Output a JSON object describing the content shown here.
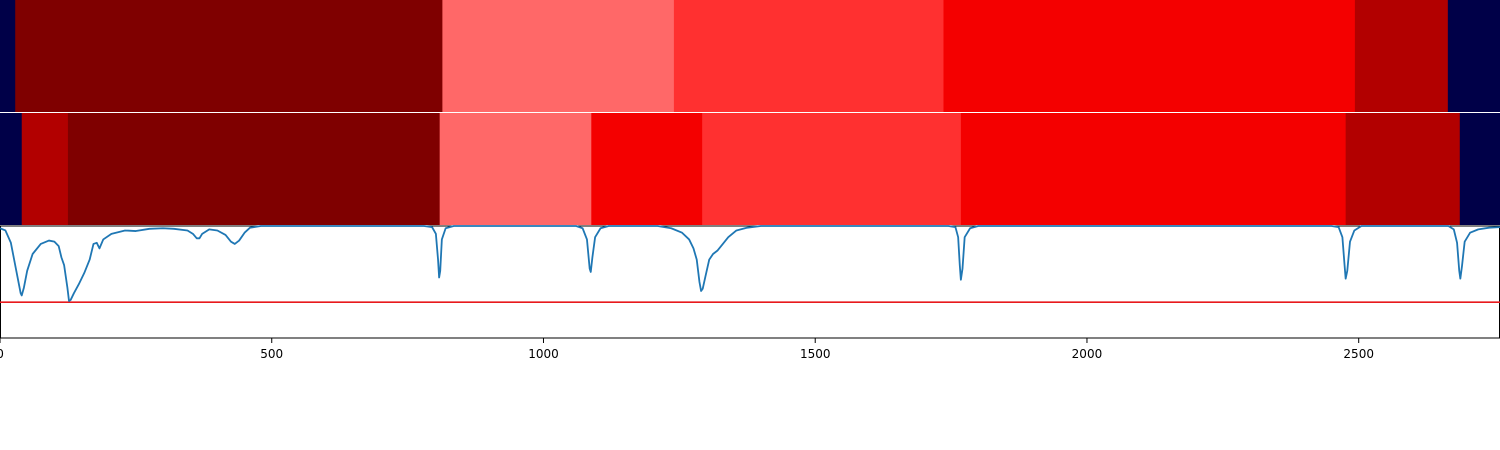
{
  "chart_data": {
    "type": "heatmap",
    "xlim": [
      0,
      2760
    ],
    "x_ticks": [
      0,
      500,
      1000,
      1500,
      2000,
      2500
    ],
    "x_tick_labels": [
      "0",
      "500",
      "1000",
      "1500",
      "2000",
      "2500"
    ],
    "colors": {
      "navy": "#000048",
      "dark_red": "#7f0000",
      "salmon": "#ff6868",
      "light_red": "#ff3030",
      "red": "#f40000",
      "mid_red": "#b20000",
      "trace": "#1f77b4",
      "threshold": "#e8191c"
    },
    "rows": [
      {
        "segments": [
          {
            "start": 0,
            "end": 28,
            "color": "navy"
          },
          {
            "start": 28,
            "end": 814,
            "color": "dark_red"
          },
          {
            "start": 814,
            "end": 1240,
            "color": "salmon"
          },
          {
            "start": 1240,
            "end": 1736,
            "color": "light_red"
          },
          {
            "start": 1736,
            "end": 2493,
            "color": "red"
          },
          {
            "start": 2493,
            "end": 2664,
            "color": "mid_red"
          },
          {
            "start": 2664,
            "end": 2760,
            "color": "navy"
          }
        ]
      },
      {
        "segments": [
          {
            "start": 0,
            "end": 40,
            "color": "navy"
          },
          {
            "start": 40,
            "end": 125,
            "color": "mid_red"
          },
          {
            "start": 125,
            "end": 809,
            "color": "dark_red"
          },
          {
            "start": 809,
            "end": 1088,
            "color": "salmon"
          },
          {
            "start": 1088,
            "end": 1292,
            "color": "red"
          },
          {
            "start": 1292,
            "end": 1768,
            "color": "light_red"
          },
          {
            "start": 1768,
            "end": 2476,
            "color": "red"
          },
          {
            "start": 2476,
            "end": 2686,
            "color": "mid_red"
          },
          {
            "start": 2686,
            "end": 2760,
            "color": "navy"
          }
        ]
      }
    ],
    "line": {
      "ylim": [
        0,
        1
      ],
      "threshold": 0.32,
      "points": [
        [
          0,
          0.98
        ],
        [
          10,
          0.96
        ],
        [
          20,
          0.85
        ],
        [
          30,
          0.6
        ],
        [
          38,
          0.4
        ],
        [
          40,
          0.38
        ],
        [
          44,
          0.45
        ],
        [
          50,
          0.6
        ],
        [
          60,
          0.75
        ],
        [
          75,
          0.84
        ],
        [
          90,
          0.87
        ],
        [
          100,
          0.86
        ],
        [
          108,
          0.82
        ],
        [
          113,
          0.72
        ],
        [
          118,
          0.65
        ],
        [
          124,
          0.45
        ],
        [
          127,
          0.33
        ],
        [
          130,
          0.34
        ],
        [
          136,
          0.4
        ],
        [
          145,
          0.48
        ],
        [
          155,
          0.58
        ],
        [
          165,
          0.7
        ],
        [
          172,
          0.84
        ],
        [
          178,
          0.85
        ],
        [
          183,
          0.8
        ],
        [
          190,
          0.88
        ],
        [
          205,
          0.93
        ],
        [
          230,
          0.96
        ],
        [
          250,
          0.955
        ],
        [
          275,
          0.975
        ],
        [
          300,
          0.98
        ],
        [
          320,
          0.975
        ],
        [
          345,
          0.96
        ],
        [
          355,
          0.93
        ],
        [
          362,
          0.89
        ],
        [
          367,
          0.89
        ],
        [
          372,
          0.93
        ],
        [
          385,
          0.97
        ],
        [
          400,
          0.96
        ],
        [
          415,
          0.92
        ],
        [
          425,
          0.86
        ],
        [
          432,
          0.84
        ],
        [
          440,
          0.87
        ],
        [
          450,
          0.94
        ],
        [
          460,
          0.985
        ],
        [
          480,
          1.0
        ],
        [
          780,
          1.0
        ],
        [
          795,
          0.99
        ],
        [
          802,
          0.93
        ],
        [
          806,
          0.7
        ],
        [
          808,
          0.54
        ],
        [
          810,
          0.6
        ],
        [
          813,
          0.88
        ],
        [
          820,
          0.98
        ],
        [
          835,
          1.0
        ],
        [
          1060,
          1.0
        ],
        [
          1072,
          0.98
        ],
        [
          1080,
          0.88
        ],
        [
          1085,
          0.62
        ],
        [
          1087,
          0.59
        ],
        [
          1090,
          0.72
        ],
        [
          1095,
          0.9
        ],
        [
          1105,
          0.98
        ],
        [
          1120,
          1.0
        ],
        [
          1210,
          1.0
        ],
        [
          1235,
          0.98
        ],
        [
          1255,
          0.94
        ],
        [
          1268,
          0.88
        ],
        [
          1276,
          0.8
        ],
        [
          1282,
          0.7
        ],
        [
          1287,
          0.5
        ],
        [
          1290,
          0.42
        ],
        [
          1293,
          0.44
        ],
        [
          1298,
          0.55
        ],
        [
          1305,
          0.7
        ],
        [
          1312,
          0.75
        ],
        [
          1320,
          0.78
        ],
        [
          1330,
          0.84
        ],
        [
          1340,
          0.9
        ],
        [
          1355,
          0.96
        ],
        [
          1375,
          0.985
        ],
        [
          1400,
          1.0
        ],
        [
          1745,
          1.0
        ],
        [
          1758,
          0.99
        ],
        [
          1763,
          0.9
        ],
        [
          1766,
          0.65
        ],
        [
          1768,
          0.52
        ],
        [
          1771,
          0.62
        ],
        [
          1775,
          0.9
        ],
        [
          1785,
          0.98
        ],
        [
          1800,
          1.0
        ],
        [
          2450,
          1.0
        ],
        [
          2463,
          0.99
        ],
        [
          2470,
          0.9
        ],
        [
          2474,
          0.65
        ],
        [
          2476,
          0.53
        ],
        [
          2479,
          0.6
        ],
        [
          2484,
          0.86
        ],
        [
          2492,
          0.96
        ],
        [
          2505,
          1.0
        ],
        [
          2665,
          1.0
        ],
        [
          2675,
          0.97
        ],
        [
          2681,
          0.85
        ],
        [
          2685,
          0.6
        ],
        [
          2687,
          0.53
        ],
        [
          2690,
          0.64
        ],
        [
          2695,
          0.86
        ],
        [
          2705,
          0.94
        ],
        [
          2720,
          0.97
        ],
        [
          2740,
          0.985
        ],
        [
          2760,
          0.99
        ]
      ]
    }
  }
}
